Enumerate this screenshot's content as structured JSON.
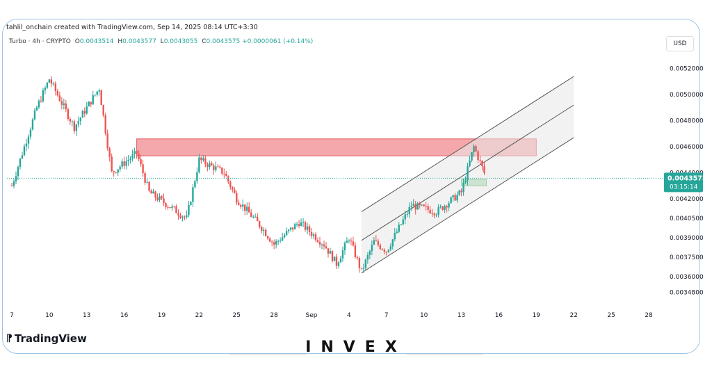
{
  "header": {
    "credit": "tahlil_onchain created with TradingView.com, Sep 14, 2025 08:14 UTC+3:30",
    "symbol": "Turbo · 4h · CRYPTO",
    "o_label": "O",
    "o_value": "0.0043514",
    "h_label": "H",
    "h_value": "0.0043577",
    "l_label": "L",
    "l_value": "0.0043055",
    "c_label": "C",
    "c_value": "0.0043575",
    "change": "+0.0000061 (+0.14%)",
    "currency": "USD"
  },
  "price_tag": {
    "price": "0.0043575",
    "countdown": "03:15:14"
  },
  "branding": {
    "tv": "TradingView",
    "invex": "INVEX"
  },
  "colors": {
    "up": "#26a69a",
    "down": "#ef5350",
    "resistance": "#f28b8f",
    "support": "#8fd19e",
    "channel": "#e8e8e8"
  },
  "chart_data": {
    "type": "candlestick",
    "timeframe": "4h",
    "x_ticks": [
      "7",
      "10",
      "13",
      "16",
      "19",
      "22",
      "25",
      "28",
      "Sep",
      "4",
      "7",
      "10",
      "13",
      "16",
      "19",
      "22",
      "25",
      "28"
    ],
    "y_ticks": [
      "0.0052000",
      "0.0050000",
      "0.0048000",
      "0.0046000",
      "0.0044000",
      "0.0042000",
      "0.0040500",
      "0.0039000",
      "0.0037500",
      "0.0036000",
      "0.0034800"
    ],
    "ylim": [
      0.00343,
      0.0053
    ],
    "last_price": 0.0043575,
    "price_path": [
      {
        "x": "Aug 7",
        "y": 0.0043
      },
      {
        "x": "Aug 9",
        "y": 0.0049
      },
      {
        "x": "Aug 10",
        "y": 0.00512
      },
      {
        "x": "Aug 12",
        "y": 0.00475
      },
      {
        "x": "Aug 14",
        "y": 0.00505
      },
      {
        "x": "Aug 15",
        "y": 0.0044
      },
      {
        "x": "Aug 17",
        "y": 0.00455
      },
      {
        "x": "Aug 18",
        "y": 0.00425
      },
      {
        "x": "Aug 21",
        "y": 0.00405
      },
      {
        "x": "Aug 22",
        "y": 0.0045
      },
      {
        "x": "Aug 24",
        "y": 0.0044
      },
      {
        "x": "Aug 25",
        "y": 0.0042
      },
      {
        "x": "Aug 27",
        "y": 0.00398
      },
      {
        "x": "Aug 28",
        "y": 0.00385
      },
      {
        "x": "Aug 30",
        "y": 0.00402
      },
      {
        "x": "Sep 1",
        "y": 0.00385
      },
      {
        "x": "Sep 2",
        "y": 0.0037
      },
      {
        "x": "Sep 3",
        "y": 0.0039
      },
      {
        "x": "Sep 4",
        "y": 0.00364
      },
      {
        "x": "Sep 5",
        "y": 0.00387
      },
      {
        "x": "Sep 6",
        "y": 0.0038
      },
      {
        "x": "Sep 8",
        "y": 0.00415
      },
      {
        "x": "Sep 10",
        "y": 0.0041
      },
      {
        "x": "Sep 12",
        "y": 0.00425
      },
      {
        "x": "Sep 13",
        "y": 0.0046
      },
      {
        "x": "Sep 14",
        "y": 0.004357
      }
    ],
    "annotations": [
      {
        "type": "resistance-zone",
        "from": "Aug 17",
        "to": "Sep 18",
        "y_low": 0.00453,
        "y_high": 0.00466
      },
      {
        "type": "support-zone",
        "from": "Sep 12",
        "to": "Sep 14",
        "y_low": 0.0043,
        "y_high": 0.00435
      },
      {
        "type": "ascending-channel",
        "from": "Sep 4",
        "to": "Sep 21",
        "lines": 3
      }
    ]
  }
}
